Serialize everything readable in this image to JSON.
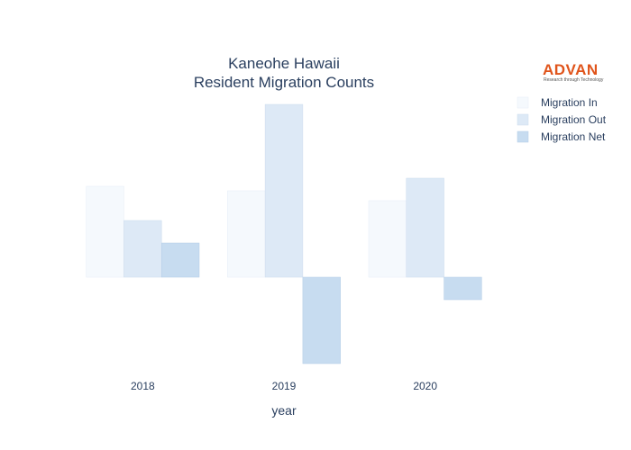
{
  "logo": {
    "name": "ADVAN",
    "tagline": "Research through Technology"
  },
  "chart_data": {
    "type": "bar",
    "title_lines": [
      "Kaneohe Hawaii",
      "Resident Migration Counts"
    ],
    "xlabel": "year",
    "ylabel": "",
    "categories": [
      "2018",
      "2019",
      "2020"
    ],
    "series": [
      {
        "name": "Migration In",
        "values": [
          101,
          96,
          85
        ],
        "color": "#f5f9fd",
        "stroke": "#e6eef7"
      },
      {
        "name": "Migration Out",
        "values": [
          63,
          192,
          110
        ],
        "color": "#dde9f6",
        "stroke": "#ccdcee"
      },
      {
        "name": "Migration Net",
        "values": [
          38,
          -96,
          -25
        ],
        "color": "#c7dcf0",
        "stroke": "#b4cde6"
      }
    ],
    "ylim": [
      -96,
      192
    ],
    "y_axis_visible": false,
    "grid": false,
    "legend_position": "top-right"
  }
}
